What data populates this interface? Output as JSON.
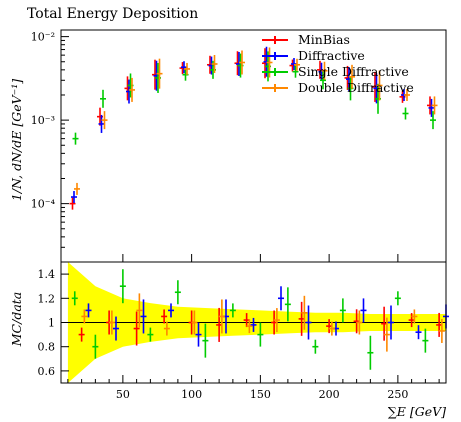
{
  "chart_data": [
    {
      "panel": "main",
      "type": "scatter",
      "title": "Total Energy Deposition",
      "xlabel": "",
      "ylabel": "1/N, dN/dE [GeV⁻¹]",
      "xlim": [
        5,
        285
      ],
      "ylim": [
        2e-05,
        0.012
      ],
      "yscale": "log",
      "yticks": [
        0.0001,
        0.001,
        0.01
      ],
      "ytick_labels": [
        "10⁻⁴",
        "10⁻³",
        "10⁻²"
      ],
      "legend_position": "top-right",
      "series": [
        {
          "name": "MinBias",
          "color": "#ff0000",
          "marker": "errorbar",
          "x": [
            15,
            35,
            55,
            75,
            95,
            115,
            135,
            155,
            175,
            195,
            215,
            235,
            255,
            275
          ],
          "y": [
            0.0001,
            0.0011,
            0.0024,
            0.0035,
            0.0042,
            0.0046,
            0.0048,
            0.0048,
            0.0045,
            0.004,
            0.0032,
            0.0025,
            0.0019,
            0.0015
          ]
        },
        {
          "name": "Diffractive",
          "color": "#0000ff",
          "marker": "errorbar",
          "x": [
            15,
            35,
            55,
            75,
            95,
            115,
            135,
            155,
            175,
            195,
            215,
            235,
            255,
            275
          ],
          "y": [
            0.00012,
            0.0009,
            0.0022,
            0.0034,
            0.0043,
            0.0045,
            0.0047,
            0.005,
            0.0047,
            0.0038,
            0.0031,
            0.0024,
            0.002,
            0.0014
          ]
        },
        {
          "name": "Single Diffractive",
          "color": "#00cc00",
          "marker": "errorbar",
          "x": [
            15,
            35,
            55,
            75,
            95,
            115,
            135,
            155,
            175,
            195,
            215,
            235,
            255,
            275
          ],
          "y": [
            0.0006,
            0.0018,
            0.0026,
            0.0032,
            0.0035,
            0.004,
            0.0045,
            0.0044,
            0.0038,
            0.003,
            0.0024,
            0.0018,
            0.0012,
            0.001
          ]
        },
        {
          "name": "Double Diffractive",
          "color": "#ff8800",
          "marker": "errorbar",
          "x": [
            15,
            35,
            55,
            75,
            95,
            115,
            135,
            155,
            175,
            195,
            215,
            235,
            255,
            275
          ],
          "y": [
            0.00015,
            0.001,
            0.0023,
            0.0036,
            0.0041,
            0.0047,
            0.0049,
            0.0049,
            0.0046,
            0.0039,
            0.0033,
            0.0026,
            0.002,
            0.0015
          ]
        }
      ]
    },
    {
      "panel": "ratio",
      "type": "scatter",
      "xlabel": "∑E [GeV]",
      "ylabel": "MC/data",
      "xlim": [
        5,
        285
      ],
      "ylim": [
        0.5,
        1.5
      ],
      "xticks": [
        50,
        100,
        150,
        200,
        250
      ],
      "yticks": [
        0.6,
        0.8,
        1.0,
        1.2,
        1.4
      ],
      "ytick_labels": [
        "0.6",
        "0.8",
        "1",
        "1.2",
        "1.4"
      ],
      "reference_line": 1.0,
      "uncertainty_band": {
        "color": "#ffff00",
        "x": [
          10,
          30,
          50,
          70,
          90,
          110,
          130,
          150,
          170,
          190,
          210,
          230,
          250,
          270,
          285
        ],
        "lower": [
          0.5,
          0.7,
          0.8,
          0.84,
          0.87,
          0.88,
          0.89,
          0.9,
          0.91,
          0.92,
          0.92,
          0.93,
          0.93,
          0.93,
          0.93
        ],
        "upper": [
          1.5,
          1.3,
          1.2,
          1.16,
          1.13,
          1.12,
          1.11,
          1.1,
          1.09,
          1.08,
          1.08,
          1.07,
          1.07,
          1.07,
          1.07
        ]
      },
      "series": [
        {
          "name": "MinBias",
          "color": "#ff0000",
          "x": [
            20,
            40,
            60,
            80,
            100,
            120,
            140,
            160,
            180,
            200,
            220,
            240,
            260,
            280
          ],
          "y": [
            0.9,
            1.0,
            0.95,
            1.05,
            1.0,
            0.98,
            1.02,
            1.0,
            1.03,
            0.97,
            1.01,
            0.99,
            1.02,
            0.98
          ]
        },
        {
          "name": "Diffractive",
          "color": "#0000ff",
          "x": [
            25,
            45,
            65,
            85,
            105,
            125,
            145,
            165,
            185,
            205,
            225,
            245,
            265,
            285
          ],
          "y": [
            1.1,
            0.95,
            1.05,
            1.1,
            0.9,
            1.05,
            0.98,
            1.2,
            1.0,
            0.95,
            1.1,
            1.0,
            0.92,
            1.05
          ]
        },
        {
          "name": "Single Diffractive",
          "color": "#00cc00",
          "x": [
            15,
            30,
            50,
            70,
            90,
            110,
            130,
            150,
            170,
            190,
            210,
            230,
            250,
            270
          ],
          "y": [
            1.2,
            0.8,
            1.3,
            0.9,
            1.25,
            0.85,
            1.1,
            0.9,
            1.15,
            0.8,
            1.1,
            0.75,
            1.2,
            0.85
          ]
        },
        {
          "name": "Double Diffractive",
          "color": "#ff8800",
          "x": [
            22,
            42,
            62,
            82,
            102,
            122,
            142,
            162,
            182,
            202,
            222,
            242,
            262,
            282
          ],
          "y": [
            1.05,
            1.0,
            1.1,
            0.95,
            1.0,
            1.05,
            0.97,
            1.02,
            1.08,
            0.95,
            1.0,
            0.9,
            1.05,
            0.93
          ]
        }
      ]
    }
  ]
}
